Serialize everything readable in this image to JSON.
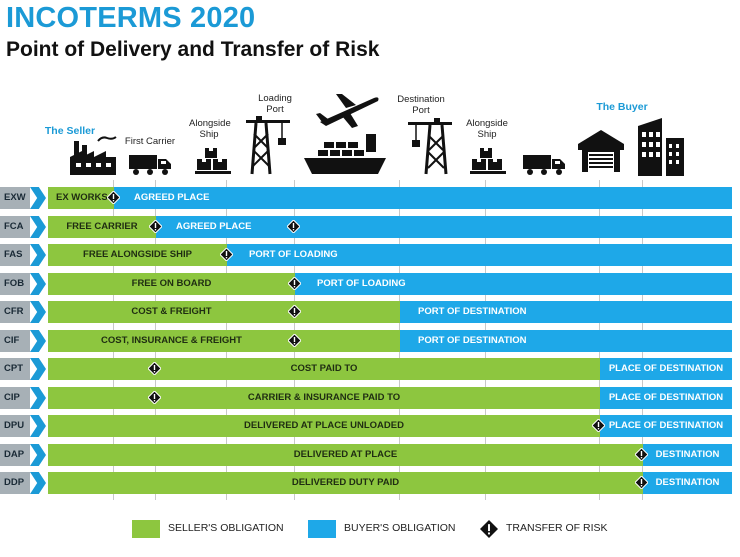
{
  "title": "INCOTERMS 2020",
  "subtitle": "Point of Delivery and Transfer of Risk",
  "header": {
    "the_seller": "The Seller",
    "first_carrier": "First Carrier",
    "alongside_ship_1": "Alongside Ship",
    "loading_port": "Loading Port",
    "destination_port": "Destination Port",
    "alongside_ship_2": "Alongside Ship",
    "the_buyer": "The Buyer"
  },
  "icons": [
    "factory-icon",
    "truck-icon",
    "boxes-icon",
    "crane-icon",
    "airplane-icon",
    "ship-icon",
    "crane-icon",
    "boxes-icon",
    "truck-icon",
    "warehouse-icon",
    "buildings-icon"
  ],
  "colors": {
    "seller": "#8dc63f",
    "buyer": "#1ea8e8",
    "title": "#1b9ad6"
  },
  "rows": [
    {
      "code": "EXW",
      "seller_label": "EX WORKS",
      "buyer_label": "AGREED PLACE"
    },
    {
      "code": "FCA",
      "seller_label": "FREE CARRIER",
      "buyer_label": "AGREED PLACE"
    },
    {
      "code": "FAS",
      "seller_label": "FREE ALONGSIDE SHIP",
      "buyer_label": "PORT OF LOADING"
    },
    {
      "code": "FOB",
      "seller_label": "FREE  ON BOARD",
      "buyer_label": "PORT OF LOADING"
    },
    {
      "code": "CFR",
      "seller_label": "COST & FREIGHT",
      "buyer_label": "PORT OF DESTINATION"
    },
    {
      "code": "CIF",
      "seller_label": "COST, INSURANCE & FREIGHT",
      "buyer_label": "PORT OF DESTINATION"
    },
    {
      "code": "CPT",
      "seller_label": "COST PAID TO",
      "buyer_label": "PLACE OF DESTINATION"
    },
    {
      "code": "CIP",
      "seller_label": "CARRIER & INSURANCE PAID TO",
      "buyer_label": "PLACE OF DESTINATION"
    },
    {
      "code": "DPU",
      "seller_label": "DELIVERED AT PLACE UNLOADED",
      "buyer_label": "PLACE OF DESTINATION"
    },
    {
      "code": "DAP",
      "seller_label": "DELIVERED AT PLACE",
      "buyer_label": "DESTINATION"
    },
    {
      "code": "DDP",
      "seller_label": "DELIVERED DUTY PAID",
      "buyer_label": "DESTINATION"
    }
  ],
  "legend": {
    "seller": "SELLER'S OBLIGATION",
    "buyer": "BUYER'S OBLIGATION",
    "risk": "TRANSFER OF RISK"
  }
}
